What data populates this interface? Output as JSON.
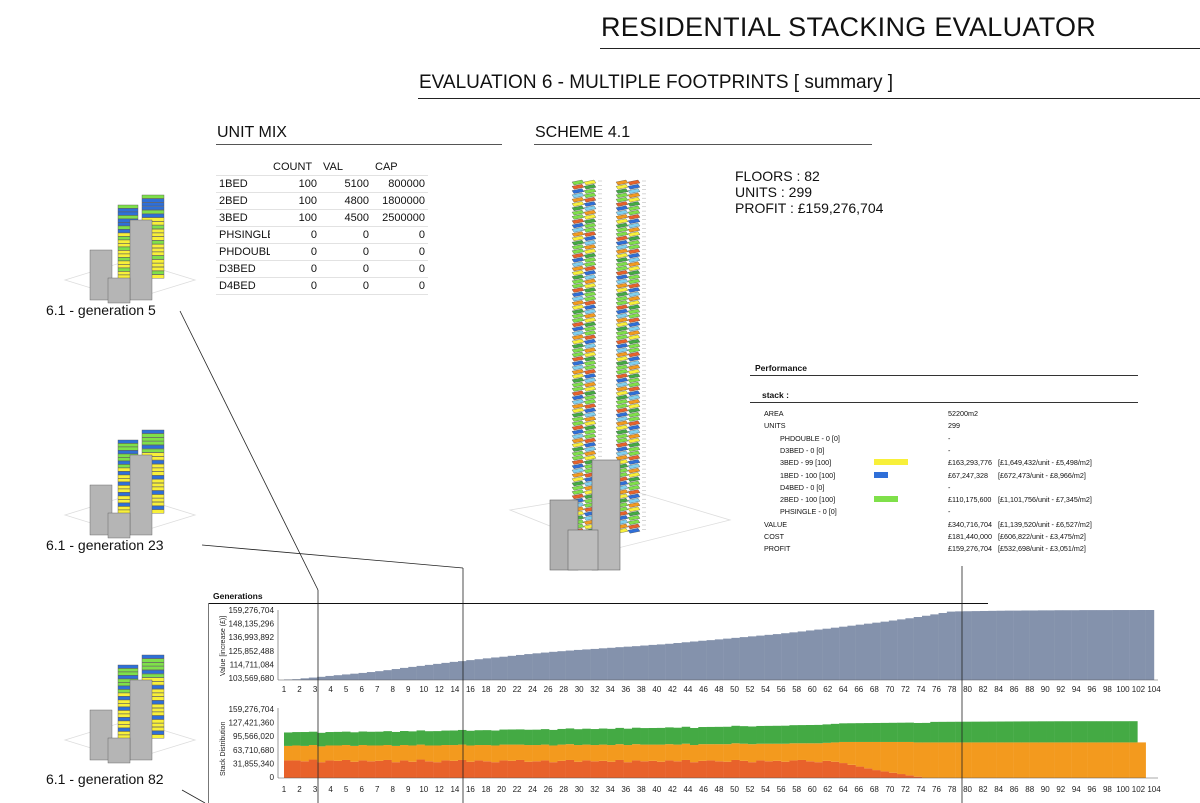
{
  "header": {
    "title": "RESIDENTIAL STACKING EVALUATOR",
    "subtitle": "EVALUATION 6 - MULTIPLE FOOTPRINTS  [ summary ]"
  },
  "unit_mix": {
    "heading": "UNIT MIX",
    "columns": [
      "",
      "COUNT",
      "VAL",
      "CAP"
    ],
    "rows": [
      [
        "1BED",
        "100",
        "5100",
        "800000"
      ],
      [
        "2BED",
        "100",
        "4800",
        "1800000"
      ],
      [
        "3BED",
        "100",
        "4500",
        "2500000"
      ],
      [
        "PHSINGLE",
        "0",
        "0",
        "0"
      ],
      [
        "PHDOUBLI",
        "0",
        "0",
        "0"
      ],
      [
        "D3BED",
        "0",
        "0",
        "0"
      ],
      [
        "D4BED",
        "0",
        "0",
        "0"
      ]
    ]
  },
  "scheme": {
    "heading": "SCHEME 4.1",
    "floors": "FLOORS : 82",
    "units": "UNITS : 299",
    "profit": "PROFIT : £159,276,704"
  },
  "generations_labels": {
    "g5": "6.1 - generation 5",
    "g23": "6.1 - generation 23",
    "g82": "6.1 - generation 82"
  },
  "performance": {
    "title": "Performance",
    "stack_label": "stack :",
    "rows": [
      {
        "label": "AREA",
        "value": "52200m2",
        "extra": ""
      },
      {
        "label": "UNITS",
        "value": "299",
        "extra": ""
      },
      {
        "label": "PHDOUBLE - 0 [0]",
        "value": "-",
        "extra": "",
        "indent": true
      },
      {
        "label": "D3BED - 0 [0]",
        "value": "-",
        "extra": "",
        "indent": true
      },
      {
        "label": "3BED - 99 [100]",
        "value": "£163,293,776",
        "extra": "[£1,649,432/unit - £5,498/m2]",
        "indent": true,
        "swatch": "#f8f03a"
      },
      {
        "label": "1BED - 100 [100]",
        "value": "£67,247,328",
        "extra": "[£672,473/unit - £8,966/m2]",
        "indent": true,
        "swatch": "#2f6fd8"
      },
      {
        "label": "D4BED - 0 [0]",
        "value": "-",
        "extra": "",
        "indent": true
      },
      {
        "label": "2BED - 100 [100]",
        "value": "£110,175,600",
        "extra": "[£1,101,756/unit - £7,345/m2]",
        "indent": true,
        "swatch": "#7fe04a"
      },
      {
        "label": "PHSINGLE - 0 [0]",
        "value": "-",
        "extra": "",
        "indent": true
      },
      {
        "label": "VALUE",
        "value": "£340,716,704",
        "extra": "[£1,139,520/unit - £6,527/m2]"
      },
      {
        "label": "COST",
        "value": "£181,440,000",
        "extra": "[£606,822/unit - £3,475/m2]"
      },
      {
        "label": "PROFIT",
        "value": "£159,276,704",
        "extra": "[£532,698/unit - £3,051/m2]"
      }
    ]
  },
  "chart_data": [
    {
      "type": "bar",
      "title": "Generations",
      "ylabel": "Value [increase (£)]",
      "ytick_labels": [
        "159,276,704",
        "148,135,296",
        "136,993,892",
        "125,852,488",
        "114,711,084",
        "103,569,680"
      ],
      "ylim": [
        103569680,
        159276704
      ],
      "xtick_labels": [
        "1",
        "2",
        "3",
        "4",
        "5",
        "6",
        "7",
        "8",
        "9",
        "10",
        "12",
        "14",
        "16",
        "18",
        "20",
        "22",
        "24",
        "26",
        "28",
        "30",
        "32",
        "34",
        "36",
        "38",
        "40",
        "42",
        "44",
        "46",
        "48",
        "50",
        "52",
        "54",
        "56",
        "58",
        "60",
        "62",
        "64",
        "66",
        "68",
        "70",
        "72",
        "74",
        "76",
        "78",
        "80",
        "82",
        "84",
        "86",
        "88",
        "90",
        "92",
        "94",
        "96",
        "98",
        "100",
        "102",
        "104"
      ],
      "series": [
        {
          "color": "#8492ac",
          "values": [
            103600000,
            104200000,
            104900000,
            105500000,
            106100000,
            106800000,
            107400000,
            108000000,
            108600000,
            109200000,
            109900000,
            110600000,
            111400000,
            112300000,
            113200000,
            114000000,
            114800000,
            115600000,
            116400000,
            117200000,
            118000000,
            118600000,
            119400000,
            120100000,
            120800000,
            121500000,
            122100000,
            122800000,
            123500000,
            124200000,
            124800000,
            125400000,
            126000000,
            126500000,
            127000000,
            127500000,
            127900000,
            128300000,
            128800000,
            129200000,
            129700000,
            130100000,
            130500000,
            131000000,
            131500000,
            131900000,
            132400000,
            133000000,
            133600000,
            134200000,
            134800000,
            135300000,
            135900000,
            136500000,
            137100000,
            137700000,
            138300000,
            138900000,
            139500000,
            140100000,
            140800000,
            141500000,
            142200000,
            143000000,
            143700000,
            144400000,
            145200000,
            146000000,
            146800000,
            147600000,
            148400000,
            149200000,
            150000000,
            150900000,
            151800000,
            152700000,
            153700000,
            154700000,
            155800000,
            156900000,
            158000000,
            158200000,
            158300000,
            158400000,
            158500000,
            158600000,
            158700000,
            158800000,
            158800000,
            158900000,
            158900000,
            159000000,
            159000000,
            159100000,
            159100000,
            159100000,
            159200000,
            159200000,
            159200000,
            159200000,
            159250000,
            159250000,
            159250000,
            159270000,
            159276704
          ]
        }
      ]
    },
    {
      "type": "bar",
      "ylabel": "Stack Distribution",
      "ytick_labels": [
        "159,276,704",
        "127,421,360",
        "95,566,020",
        "63,710,680",
        "31,855,340",
        "0"
      ],
      "ylim": [
        0,
        159276704
      ],
      "xtick_labels": [
        "1",
        "2",
        "3",
        "4",
        "5",
        "6",
        "7",
        "8",
        "9",
        "10",
        "12",
        "14",
        "16",
        "18",
        "20",
        "22",
        "24",
        "26",
        "28",
        "30",
        "32",
        "34",
        "36",
        "38",
        "40",
        "42",
        "44",
        "46",
        "48",
        "50",
        "52",
        "54",
        "56",
        "58",
        "60",
        "62",
        "64",
        "66",
        "68",
        "70",
        "72",
        "74",
        "76",
        "78",
        "80",
        "82",
        "84",
        "86",
        "88",
        "90",
        "92",
        "94",
        "96",
        "98",
        "100",
        "102",
        "104"
      ],
      "series": [
        {
          "color": "#e8622b",
          "values": [
            40000000,
            40000000,
            38000000,
            42000000,
            36000000,
            40000000,
            39000000,
            41000000,
            37000000,
            40000000,
            38000000,
            39000000,
            41000000,
            36000000,
            40000000,
            37000000,
            42000000,
            38000000,
            36000000,
            40000000,
            39000000,
            41000000,
            37000000,
            40000000,
            38000000,
            36000000,
            40000000,
            39000000,
            41000000,
            37000000,
            38000000,
            40000000,
            36000000,
            39000000,
            41000000,
            37000000,
            40000000,
            38000000,
            39000000,
            37000000,
            41000000,
            36000000,
            40000000,
            38000000,
            39000000,
            37000000,
            40000000,
            38000000,
            41000000,
            36000000,
            39000000,
            40000000,
            38000000,
            37000000,
            41000000,
            39000000,
            36000000,
            40000000,
            38000000,
            39000000,
            37000000,
            40000000,
            41000000,
            38000000,
            36000000,
            39000000,
            37000000,
            34000000,
            30000000,
            26000000,
            22000000,
            18000000,
            15000000,
            12000000,
            9000000,
            6000000,
            3000000,
            0,
            0,
            0,
            0,
            0,
            0,
            0,
            0,
            0,
            0,
            0,
            0,
            0,
            0,
            0,
            0,
            0,
            0,
            0,
            0,
            0,
            0,
            0,
            0,
            0,
            0,
            0,
            0
          ]
        },
        {
          "color": "#f39a1e",
          "values": [
            33000000,
            34000000,
            35000000,
            33000000,
            36000000,
            34000000,
            35000000,
            34000000,
            36000000,
            35000000,
            36000000,
            35000000,
            34000000,
            37000000,
            35000000,
            37000000,
            34000000,
            36000000,
            38000000,
            35000000,
            36000000,
            35000000,
            37000000,
            35000000,
            37000000,
            38000000,
            36000000,
            37000000,
            35000000,
            38000000,
            37000000,
            36000000,
            38000000,
            37000000,
            36000000,
            38000000,
            36000000,
            37000000,
            37000000,
            38000000,
            36000000,
            39000000,
            37000000,
            38000000,
            37000000,
            39000000,
            37000000,
            38000000,
            37000000,
            39000000,
            38000000,
            37000000,
            39000000,
            40000000,
            38000000,
            39000000,
            41000000,
            38000000,
            40000000,
            39000000,
            41000000,
            39000000,
            38000000,
            41000000,
            43000000,
            41000000,
            44000000,
            48000000,
            52000000,
            56000000,
            60000000,
            64000000,
            67000000,
            70000000,
            73000000,
            76000000,
            78000000,
            81000000,
            81000000,
            81000000,
            81000000,
            81000000,
            81000000,
            81000000,
            81000000,
            81000000,
            81000000,
            81000000,
            81000000,
            81000000,
            81000000,
            81000000,
            81000000,
            81000000,
            81000000,
            81000000,
            81000000,
            81000000,
            81000000,
            81000000,
            81000000,
            81000000,
            81000000,
            81000000
          ]
        },
        {
          "color": "#44aa44",
          "values": [
            30600000,
            30500000,
            31600000,
            30300000,
            30800000,
            30600000,
            30900000,
            30500000,
            31000000,
            30800000,
            31200000,
            31400000,
            31600000,
            31800000,
            31900000,
            32100000,
            32300000,
            32500000,
            32700000,
            32900000,
            33100000,
            33300000,
            33500000,
            33700000,
            33900000,
            34000000,
            34200000,
            34400000,
            34600000,
            34800000,
            35000000,
            35200000,
            35400000,
            35600000,
            35800000,
            36000000,
            36200000,
            36400000,
            36600000,
            36800000,
            37000000,
            37200000,
            37400000,
            37600000,
            37800000,
            38000000,
            38200000,
            38400000,
            38600000,
            38800000,
            39000000,
            39200000,
            39400000,
            39600000,
            39800000,
            40000000,
            40200000,
            40400000,
            40600000,
            40800000,
            41000000,
            41200000,
            41400000,
            41600000,
            41800000,
            42000000,
            42200000,
            42400000,
            42600000,
            42800000,
            43000000,
            43200000,
            43400000,
            43600000,
            43800000,
            44000000,
            44200000,
            44400000,
            46700000,
            46800000,
            46900000,
            47000000,
            47100000,
            47200000,
            47300000,
            47400000,
            47500000,
            47600000,
            47700000,
            47800000,
            47900000,
            48000000,
            48000000,
            48100000,
            48100000,
            48200000,
            48200000,
            48200000,
            48200000,
            48200000,
            48200000,
            48200000,
            48276704
          ]
        }
      ]
    }
  ],
  "colors": {
    "bar": "#8492ac",
    "orange": "#f39a1e",
    "red": "#e8622b",
    "green": "#44aa44",
    "yellow": "#f8f03a",
    "blue": "#2f6fd8",
    "lime": "#7fe04a",
    "grey": "#b5b5b5"
  }
}
